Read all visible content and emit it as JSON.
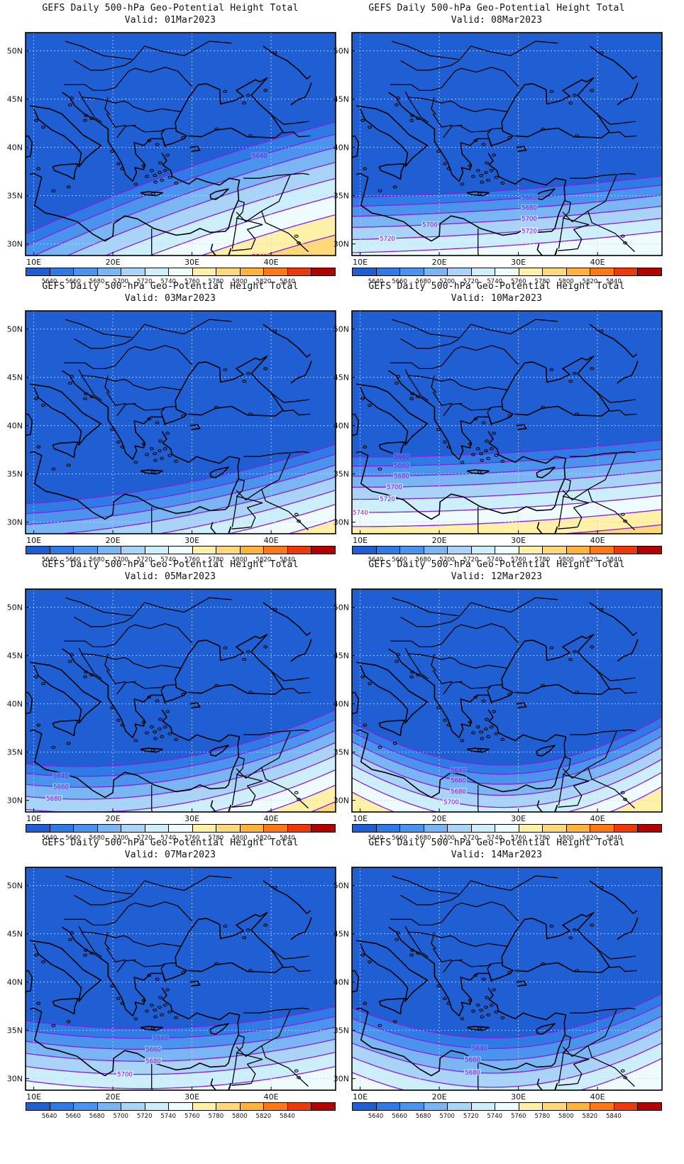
{
  "title": "GEFS Daily 500-hPa Geo-Potential Height Total",
  "valid_prefix": "Valid: ",
  "lat_labels": [
    "50N",
    "45N",
    "40N",
    "35N",
    "30N"
  ],
  "lon_labels": [
    "10E",
    "20E",
    "30E",
    "40E"
  ],
  "colorbar": {
    "labels": [
      "5640",
      "5660",
      "5680",
      "5700",
      "5720",
      "5740",
      "5760",
      "5780",
      "5800",
      "5820",
      "5840"
    ],
    "colors": [
      "#1f5fd3",
      "#2e7be6",
      "#4a94ee",
      "#7ab6f3",
      "#a9d3f7",
      "#cdeefb",
      "#eefcff",
      "#fff1a8",
      "#ffd979",
      "#ffb33a",
      "#ff7a16",
      "#ee3a0a",
      "#b30000"
    ]
  },
  "panels": [
    {
      "valid": "01Mar2023",
      "contour_labels": [
        "5640",
        "5740"
      ]
    },
    {
      "valid": "08Mar2023",
      "contour_labels": [
        "5660",
        "5680",
        "5700",
        "5700",
        "5720",
        "5720"
      ]
    },
    {
      "valid": "03Mar2023",
      "contour_labels": []
    },
    {
      "valid": "10Mar2023",
      "contour_labels": [
        "5640",
        "5660",
        "5680",
        "5700",
        "5720",
        "5740"
      ]
    },
    {
      "valid": "05Mar2023",
      "contour_labels": [
        "5640",
        "5660",
        "5680"
      ]
    },
    {
      "valid": "12Mar2023",
      "contour_labels": [
        "5640",
        "5660",
        "5680",
        "5700",
        "5720"
      ]
    },
    {
      "valid": "07Mar2023",
      "contour_labels": [
        "5640",
        "5660",
        "5680",
        "5700"
      ]
    },
    {
      "valid": "14Mar2023",
      "contour_labels": [
        "5640",
        "5660",
        "5680"
      ]
    }
  ]
}
